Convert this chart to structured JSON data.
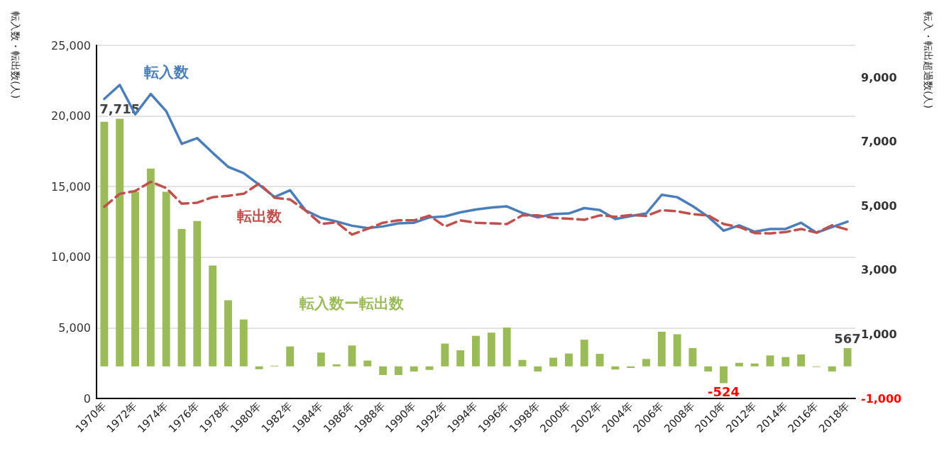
{
  "chart_data": {
    "type": "line",
    "categories": [
      "1970年",
      null,
      "1972年",
      null,
      "1974年",
      null,
      "1976年",
      null,
      "1978年",
      null,
      "1980年",
      null,
      "1982年",
      null,
      "1984年",
      null,
      "1986年",
      null,
      "1988年",
      null,
      "1990年",
      null,
      "1992年",
      null,
      "1994年",
      null,
      "1996年",
      null,
      "1998年",
      null,
      "2000年",
      null,
      "2002年",
      null,
      "2004年",
      null,
      "2006年",
      null,
      "2008年",
      null,
      "2010年",
      null,
      "2012年",
      null,
      "2014年",
      null,
      "2016年",
      null,
      "2018年"
    ],
    "series": [
      {
        "name": "転入数ー転出数",
        "type": "bar",
        "axis": "y2",
        "color": "#9bbb59",
        "values": [
          7620,
          7715,
          5440,
          6160,
          5440,
          4280,
          4530,
          3140,
          2060,
          1460,
          -90,
          20,
          620,
          0,
          430,
          60,
          650,
          180,
          -270,
          -270,
          -160,
          -110,
          710,
          500,
          950,
          1050,
          1210,
          200,
          -160,
          270,
          400,
          830,
          390,
          -100,
          -50,
          230,
          1080,
          1000,
          570,
          -160,
          -524,
          110,
          90,
          340,
          290,
          370,
          -20,
          -160,
          567
        ],
        "value_labels": [
          null,
          "7,715",
          null,
          null,
          null,
          null,
          null,
          null,
          null,
          null,
          null,
          null,
          null,
          null,
          null,
          null,
          null,
          null,
          null,
          null,
          null,
          null,
          null,
          null,
          null,
          null,
          null,
          null,
          null,
          null,
          null,
          null,
          null,
          null,
          null,
          null,
          null,
          null,
          null,
          null,
          "-524",
          null,
          null,
          null,
          null,
          null,
          null,
          null,
          "567"
        ]
      },
      {
        "name": "転入数",
        "color": "#4a7ebb",
        "line_style": "solid",
        "values": [
          21210,
          22200,
          20120,
          21560,
          20340,
          18030,
          18430,
          17390,
          16400,
          15960,
          15130,
          14260,
          14740,
          13310,
          12790,
          12530,
          12230,
          12060,
          12180,
          12400,
          12440,
          12820,
          12890,
          13180,
          13380,
          13520,
          13600,
          13130,
          12820,
          13050,
          13100,
          13480,
          13340,
          12700,
          12910,
          13100,
          14420,
          14250,
          13620,
          12870,
          11880,
          12260,
          11810,
          12000,
          12000,
          12440,
          11740,
          12130,
          12520
        ]
      },
      {
        "name": "転出数",
        "color": "#c0504d",
        "line_style": "dashed",
        "values": [
          13570,
          14490,
          14690,
          15340,
          14900,
          13790,
          13860,
          14250,
          14350,
          14490,
          15220,
          14210,
          14090,
          13310,
          12350,
          12470,
          11600,
          12010,
          12440,
          12610,
          12610,
          12940,
          12180,
          12610,
          12440,
          12400,
          12350,
          12960,
          12960,
          12790,
          12730,
          12650,
          12960,
          12870,
          12990,
          12920,
          13340,
          13250,
          13050,
          12960,
          12350,
          12140,
          11710,
          11690,
          11780,
          12000,
          11740,
          12260,
          11950
        ]
      }
    ],
    "ylabel": "転入数・転出数(人)",
    "y2label": "転入・転出超過数(人)",
    "ylim": [
      0,
      25000
    ],
    "yticks": [
      0,
      {
        "value": 5000,
        "label": "5,000"
      },
      {
        "value": 10000,
        "label": "10,000"
      },
      {
        "value": 15000,
        "label": "15,000"
      },
      {
        "value": 20000,
        "label": "20,000"
      },
      {
        "value": 25000,
        "label": "25,000"
      }
    ],
    "y2lim": [
      -1000,
      10000
    ],
    "y2ticks": [
      {
        "value": -1000,
        "label": "-1,000"
      },
      {
        "value": 1000,
        "label": "1,000"
      },
      {
        "value": 3000,
        "label": "3,000"
      },
      {
        "value": 5000,
        "label": "5,000"
      },
      {
        "value": 7000,
        "label": "7,000"
      },
      {
        "value": 9000,
        "label": "9,000"
      }
    ],
    "grid": "y",
    "marker": "none"
  }
}
